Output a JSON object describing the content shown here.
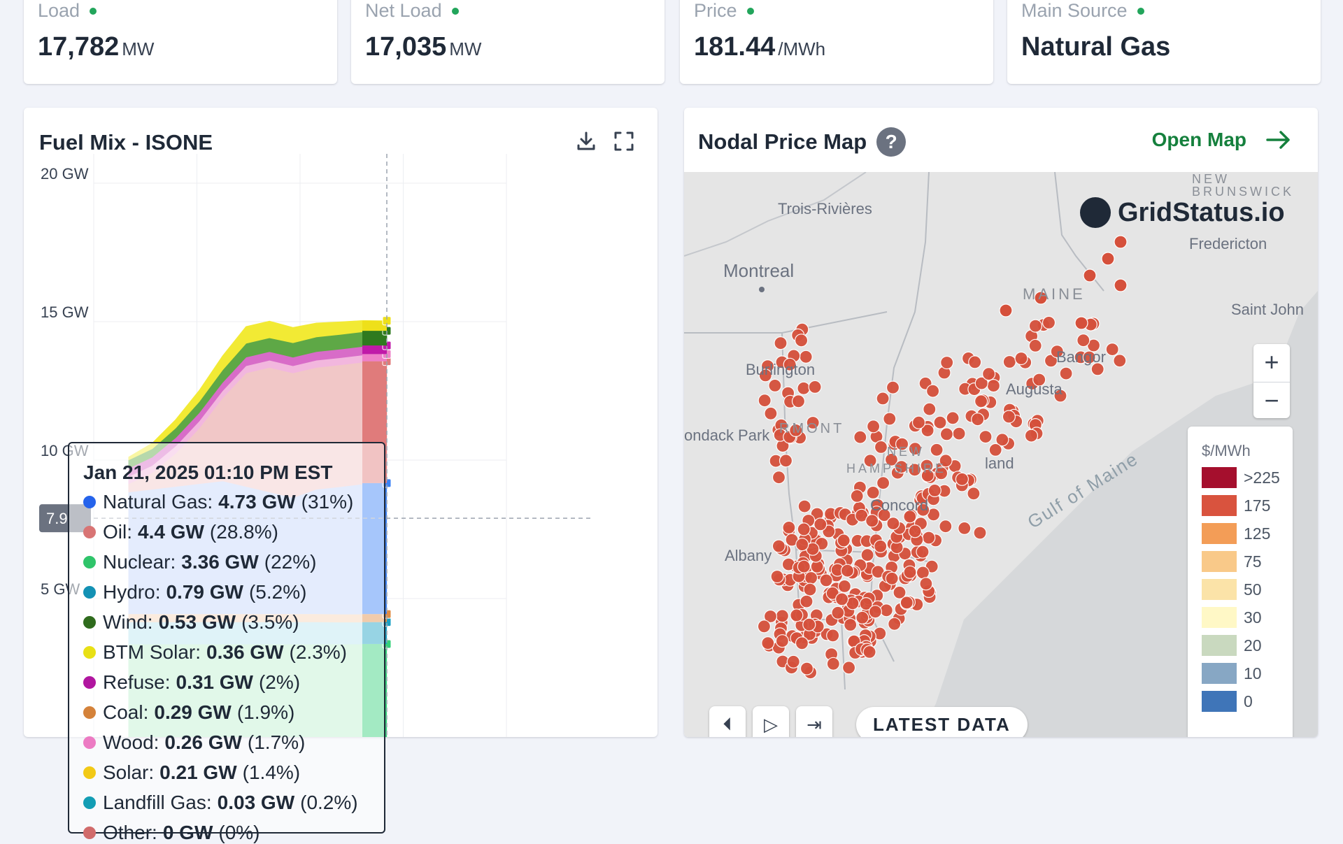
{
  "stats": [
    {
      "label": "Load",
      "value": "17,782",
      "unit": "MW"
    },
    {
      "label": "Net Load",
      "value": "17,035",
      "unit": "MW"
    },
    {
      "label": "Price",
      "value": "181.44",
      "unit": "/MWh"
    },
    {
      "label": "Main Source",
      "value": "Natural Gas",
      "unit": ""
    }
  ],
  "fuel_mix": {
    "title": "Fuel Mix - ISONE",
    "tools": {
      "download": "download-icon",
      "fullscreen": "fullscreen-icon"
    },
    "cursor_y_label": "7.9",
    "tooltip": {
      "date": "Jan 21, 2025 01:10 PM EST",
      "rows": [
        {
          "name": "Natural Gas:",
          "value": "4.73 GW",
          "pct": "(31%)",
          "color": "#2563eb"
        },
        {
          "name": "Oil:",
          "value": "4.4 GW",
          "pct": "(28.8%)",
          "color": "#d87474"
        },
        {
          "name": "Nuclear:",
          "value": "3.36 GW",
          "pct": "(22%)",
          "color": "#2fc46a"
        },
        {
          "name": "Hydro:",
          "value": "0.79 GW",
          "pct": "(5.2%)",
          "color": "#1391b4"
        },
        {
          "name": "Wind:",
          "value": "0.53 GW",
          "pct": "(3.5%)",
          "color": "#2f6b1d"
        },
        {
          "name": "BTM Solar:",
          "value": "0.36 GW",
          "pct": "(2.3%)",
          "color": "#e8e015"
        },
        {
          "name": "Refuse:",
          "value": "0.31 GW",
          "pct": "(2%)",
          "color": "#b0169f"
        },
        {
          "name": "Coal:",
          "value": "0.29 GW",
          "pct": "(1.9%)",
          "color": "#d4823a"
        },
        {
          "name": "Wood:",
          "value": "0.26 GW",
          "pct": "(1.7%)",
          "color": "#ec7bc3"
        },
        {
          "name": "Solar:",
          "value": "0.21 GW",
          "pct": "(1.4%)",
          "color": "#f2c916"
        },
        {
          "name": "Landfill Gas:",
          "value": "0.03 GW",
          "pct": "(0.2%)",
          "color": "#139db4"
        },
        {
          "name": "Other:",
          "value": "0 GW",
          "pct": "(0%)",
          "color": "#d16b6b"
        }
      ]
    }
  },
  "chart_data": {
    "type": "area",
    "title": "Fuel Mix - ISONE",
    "ylim": [
      0,
      20
    ],
    "y_ticks": [
      "20 GW",
      "15 GW",
      "10 GW",
      "5 GW"
    ],
    "stacked": true,
    "series": [
      {
        "name": "Nuclear",
        "color": "#bdf0cf",
        "values": [
          3.36,
          3.36,
          3.36,
          3.36,
          3.36,
          3.36,
          3.36,
          3.36,
          3.36,
          3.36,
          3.36,
          3.36
        ]
      },
      {
        "name": "Hydro",
        "color": "#b9e4ef",
        "values": [
          0.8,
          0.8,
          0.8,
          0.8,
          0.8,
          0.8,
          0.8,
          0.8,
          0.8,
          0.79,
          0.79,
          0.79
        ]
      },
      {
        "name": "Coal",
        "color": "#f6d3b6",
        "values": [
          0.29,
          0.29,
          0.29,
          0.29,
          0.29,
          0.29,
          0.29,
          0.29,
          0.29,
          0.29,
          0.29,
          0.29
        ]
      },
      {
        "name": "Natural Gas",
        "color": "#c3d6fb",
        "values": [
          4.4,
          4.5,
          4.6,
          4.7,
          4.8,
          4.6,
          4.4,
          4.2,
          4.5,
          4.6,
          4.7,
          4.73
        ]
      },
      {
        "name": "Oil",
        "color": "#f1c7c7",
        "values": [
          0.3,
          0.6,
          1.2,
          2.0,
          3.0,
          4.1,
          4.5,
          4.5,
          4.4,
          4.4,
          4.4,
          4.4
        ]
      },
      {
        "name": "Wood",
        "color": "#f2b7de",
        "values": [
          0.26,
          0.26,
          0.26,
          0.26,
          0.26,
          0.26,
          0.26,
          0.26,
          0.26,
          0.26,
          0.26,
          0.26
        ]
      },
      {
        "name": "Refuse",
        "color": "#d86cc8",
        "values": [
          0.3,
          0.3,
          0.3,
          0.3,
          0.3,
          0.31,
          0.31,
          0.31,
          0.31,
          0.31,
          0.31,
          0.31
        ]
      },
      {
        "name": "Wind",
        "color": "#5ea846",
        "values": [
          0.3,
          0.3,
          0.35,
          0.4,
          0.45,
          0.5,
          0.5,
          0.52,
          0.53,
          0.53,
          0.53,
          0.53
        ]
      },
      {
        "name": "BTM Solar",
        "color": "#f2ea34",
        "values": [
          0.1,
          0.2,
          0.3,
          0.4,
          0.5,
          0.6,
          0.6,
          0.55,
          0.5,
          0.45,
          0.4,
          0.36
        ]
      }
    ]
  },
  "nodal_map": {
    "title": "Nodal Price Map",
    "help": "?",
    "open_label": "Open Map",
    "brand": "GridStatus.io",
    "places": {
      "trois_rivieres": "Trois-Rivières",
      "montreal": "Montreal",
      "new_brunswick_1": "NEW",
      "new_brunswick_2": "BRUNSWICK",
      "fredericton": "Fredericton",
      "saint_john": "Saint John",
      "maine": "MAINE",
      "vermont": "RMONT",
      "new_hampshire_1": "NEW",
      "new_hampshire_2": "HAMPSHIRE",
      "burlington": "Burlington",
      "adirondack": "ondack Park",
      "augusta": "Augusta",
      "bangor": "Bangor",
      "portland": "land",
      "concord": "Concord",
      "albany": "Albany",
      "gulf": "Gulf of Maine"
    },
    "legend": {
      "title": "$/MWh",
      "items": [
        {
          "label": ">225",
          "color": "#a50f2d"
        },
        {
          "label": "175",
          "color": "#d9533e"
        },
        {
          "label": "125",
          "color": "#f39d57"
        },
        {
          "label": "75",
          "color": "#f9c989"
        },
        {
          "label": "50",
          "color": "#fbe3a8"
        },
        {
          "label": "30",
          "color": "#fff8c6"
        },
        {
          "label": "20",
          "color": "#c9d9bf"
        },
        {
          "label": "10",
          "color": "#87a7c4"
        },
        {
          "label": "0",
          "color": "#3f75b8"
        }
      ]
    },
    "zoom_in": "+",
    "zoom_out": "−",
    "latest_label": "LATEST DATA",
    "node_color": "#d5503b"
  }
}
